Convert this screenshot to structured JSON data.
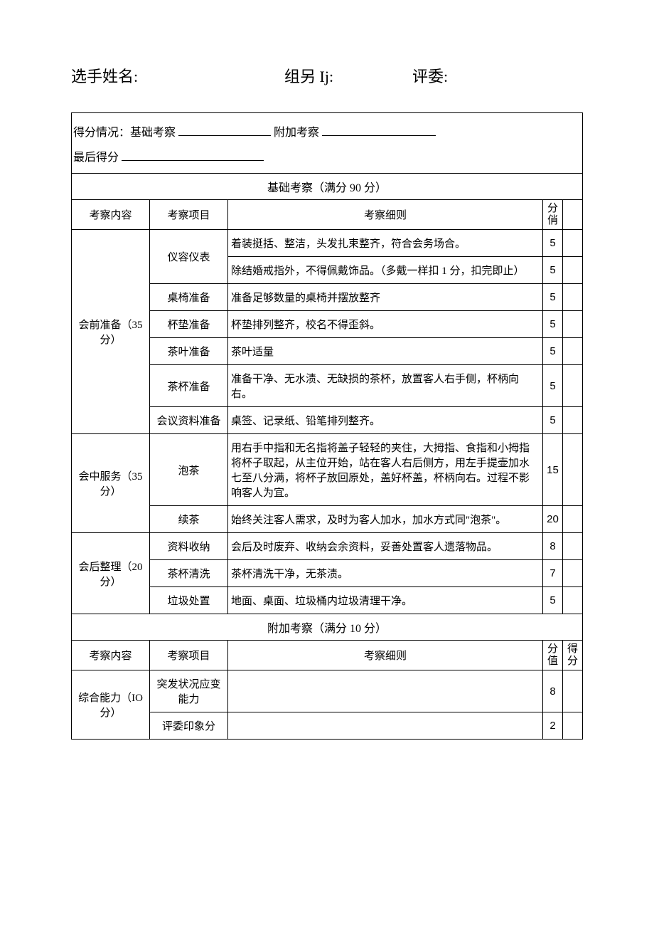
{
  "header": {
    "name_label": "选手姓名:",
    "group_label": "组另 Ij:",
    "judge_label": "评委:"
  },
  "summary": {
    "line1_prefix": "得分情况：基础考察",
    "line1_mid": "附加考察",
    "line2_prefix": "最后得分"
  },
  "sections": {
    "basic": {
      "title": "基础考察（满分 90 分）",
      "headers": {
        "content": "考察内容",
        "item": "考察项目",
        "detail": "考察细则",
        "score": "分俏"
      },
      "groups": [
        {
          "label": "会前准备（35分）",
          "rows": [
            {
              "item": "仪容仪表",
              "item_rowspan": 2,
              "detail": "着装挺括、整洁，头发扎束整齐，符合会务场合。",
              "score": "5"
            },
            {
              "detail": "除结婚戒指外，不得佩戴饰品。（多戴一样扣 1 分，扣完即止）",
              "score": "5"
            },
            {
              "item": "桌椅准备",
              "detail": "准备足够数量的桌椅并摆放整齐",
              "score": "5"
            },
            {
              "item": "杯垫准备",
              "detail": "杯垫排列整齐，校名不得歪斜。",
              "score": "5"
            },
            {
              "item": "茶叶准备",
              "detail": "茶叶适量",
              "score": "5"
            },
            {
              "item": "茶杯准备",
              "detail": "准备干净、无水渍、无缺损的茶杯，放置客人右手侧，杯柄向右。",
              "score": "5"
            },
            {
              "item": "会议资料准备",
              "detail": "桌签、记录纸、铅笔排列整齐。",
              "score": "5"
            }
          ]
        },
        {
          "label": "会中服务（35分）",
          "rows": [
            {
              "item": "泡茶",
              "detail": "用右手中指和无名指将盖子轻轻的夹住，大拇指、食指和小拇指将杯子取起，从主位开始，站在客人右后侧方，用左手提壶加水七至八分满，将杯子放回原处，盖好杯盖，杯柄向右。过程不影响客人为宜。",
              "score": "15"
            },
            {
              "item": "续茶",
              "detail": "始终关注客人需求，及时为客人加水，加水方式同\"泡茶\"。",
              "score": "20"
            }
          ]
        },
        {
          "label": "会后整理（20分）",
          "rows": [
            {
              "item": "资料收纳",
              "detail": "会后及时废弃、收纳会余资料，妥善处置客人遗落物品。",
              "score": "8"
            },
            {
              "item": "茶杯清洗",
              "detail": "茶杯清洗干净，无茶渍。",
              "score": "7"
            },
            {
              "item": "垃圾处置",
              "detail": "地面、桌面、垃圾桶内垃圾清理干净。",
              "score": "5"
            }
          ]
        }
      ]
    },
    "extra": {
      "title": "附加考察（满分 10 分）",
      "headers": {
        "content": "考察内容",
        "item": "考察项目",
        "detail": "考察细则",
        "score": "分值",
        "got": "得分"
      },
      "group": {
        "label": "综合能力（IO分）",
        "rows": [
          {
            "item": "突发状况应变能力",
            "detail": "",
            "score": "8"
          },
          {
            "item": "评委印象分",
            "detail": "",
            "score": "2"
          }
        ]
      }
    }
  }
}
